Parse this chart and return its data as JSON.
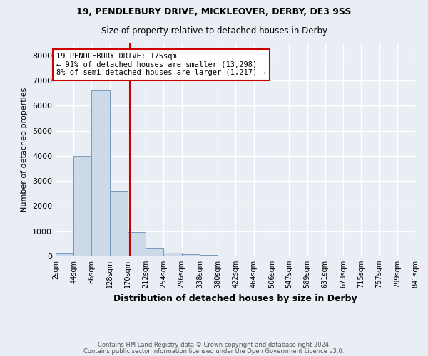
{
  "title1": "19, PENDLEBURY DRIVE, MICKLEOVER, DERBY, DE3 9SS",
  "title2": "Size of property relative to detached houses in Derby",
  "xlabel": "Distribution of detached houses by size in Derby",
  "ylabel": "Number of detached properties",
  "bin_edges": [
    2,
    44,
    86,
    128,
    170,
    212,
    254,
    296,
    338,
    380,
    422,
    464,
    506,
    547,
    589,
    631,
    673,
    715,
    757,
    799,
    841
  ],
  "bar_heights": [
    100,
    4000,
    6600,
    2600,
    950,
    320,
    130,
    90,
    70,
    0,
    0,
    0,
    0,
    0,
    0,
    0,
    0,
    0,
    0,
    0
  ],
  "property_size": 175,
  "bar_color": "#ccd9e8",
  "bar_edge_color": "#7799bb",
  "vline_color": "#cc0000",
  "annotation_text": "19 PENDLEBURY DRIVE: 175sqm\n← 91% of detached houses are smaller (13,298)\n8% of semi-detached houses are larger (1,217) →",
  "annotation_box_color": "#ffffff",
  "annotation_box_edge": "#cc0000",
  "ylim": [
    0,
    8500
  ],
  "yticks": [
    0,
    1000,
    2000,
    3000,
    4000,
    5000,
    6000,
    7000,
    8000
  ],
  "footnote1": "Contains HM Land Registry data © Crown copyright and database right 2024.",
  "footnote2": "Contains public sector information licensed under the Open Government Licence v3.0.",
  "background_color": "#e8eef4",
  "grid_color": "#ffffff"
}
